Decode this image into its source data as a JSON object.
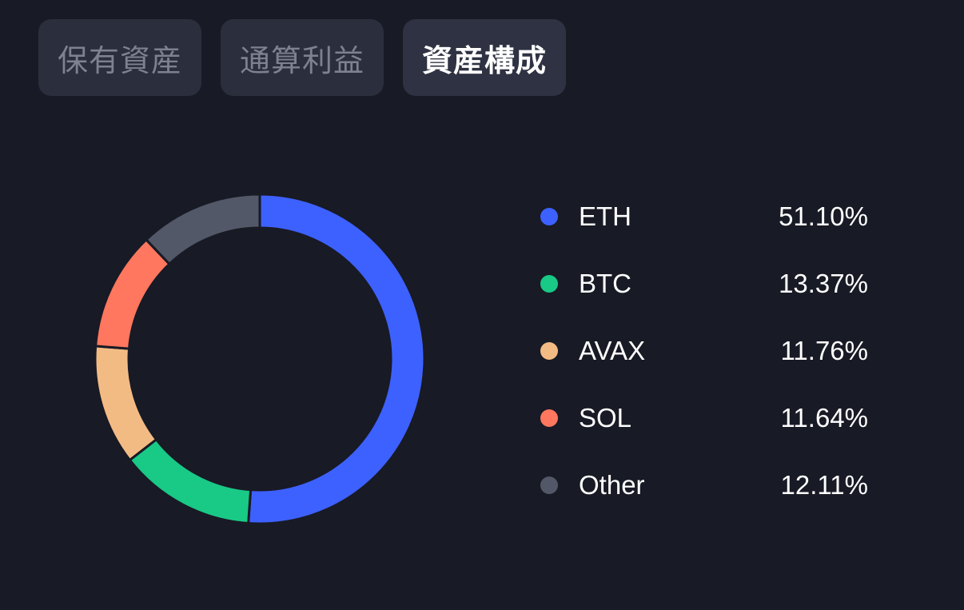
{
  "tabs": [
    {
      "label": "保有資産",
      "active": false
    },
    {
      "label": "通算利益",
      "active": false
    },
    {
      "label": "資産構成",
      "active": true
    }
  ],
  "chart_data": {
    "type": "pie",
    "categories": [
      "ETH",
      "BTC",
      "AVAX",
      "SOL",
      "Other"
    ],
    "values": [
      51.1,
      13.37,
      11.76,
      11.64,
      12.11
    ],
    "value_labels": [
      "51.10%",
      "13.37%",
      "11.76%",
      "11.64%",
      "12.11%"
    ],
    "colors": [
      "#3d61ff",
      "#19c986",
      "#f3bb84",
      "#ff775e",
      "#535868"
    ],
    "donut": true,
    "legend_position": "right"
  }
}
